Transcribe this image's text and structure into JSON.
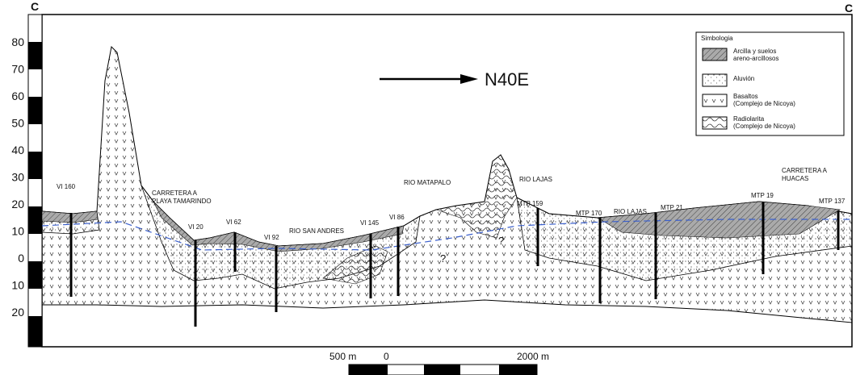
{
  "section_marks": [
    "C",
    "C"
  ],
  "scale_labels": [
    "80",
    "70",
    "60",
    "50",
    "40",
    "30",
    "20",
    "10",
    "0",
    "10",
    "20"
  ],
  "direction": "N40E",
  "legend": {
    "title": "Simbologia",
    "items": [
      {
        "lines": [
          "Arcilla y suelos",
          "areno-arcillosos"
        ]
      },
      {
        "lines": [
          "Aluvión"
        ]
      },
      {
        "lines": [
          "Basaltos",
          "(Complejo de Nicoya)"
        ]
      },
      {
        "lines": [
          "Radiolarita",
          "(Complejo de Nicoya)"
        ]
      }
    ]
  },
  "wells": [
    "VI 160",
    "VI 20",
    "VI 62",
    "VI 92",
    "VI 145",
    "VI 86",
    "MTP 159",
    "MTP 170",
    "MTP 21",
    "MTP 19",
    "MTP 137"
  ],
  "rivers": [
    "RIO SAN ANDRES",
    "RIO MATAPALO",
    "RIO LAJAS",
    "RIO LAJAS"
  ],
  "roads": [
    {
      "lines": [
        "CARRETERA A",
        "PLAYA TAMARINDO"
      ]
    },
    {
      "lines": [
        "CARRETERA A",
        "HUACAS"
      ]
    }
  ],
  "questions": [
    "?",
    "?"
  ],
  "scale_bar": {
    "left": "500 m",
    "zero": "0",
    "right": "2000 m"
  }
}
